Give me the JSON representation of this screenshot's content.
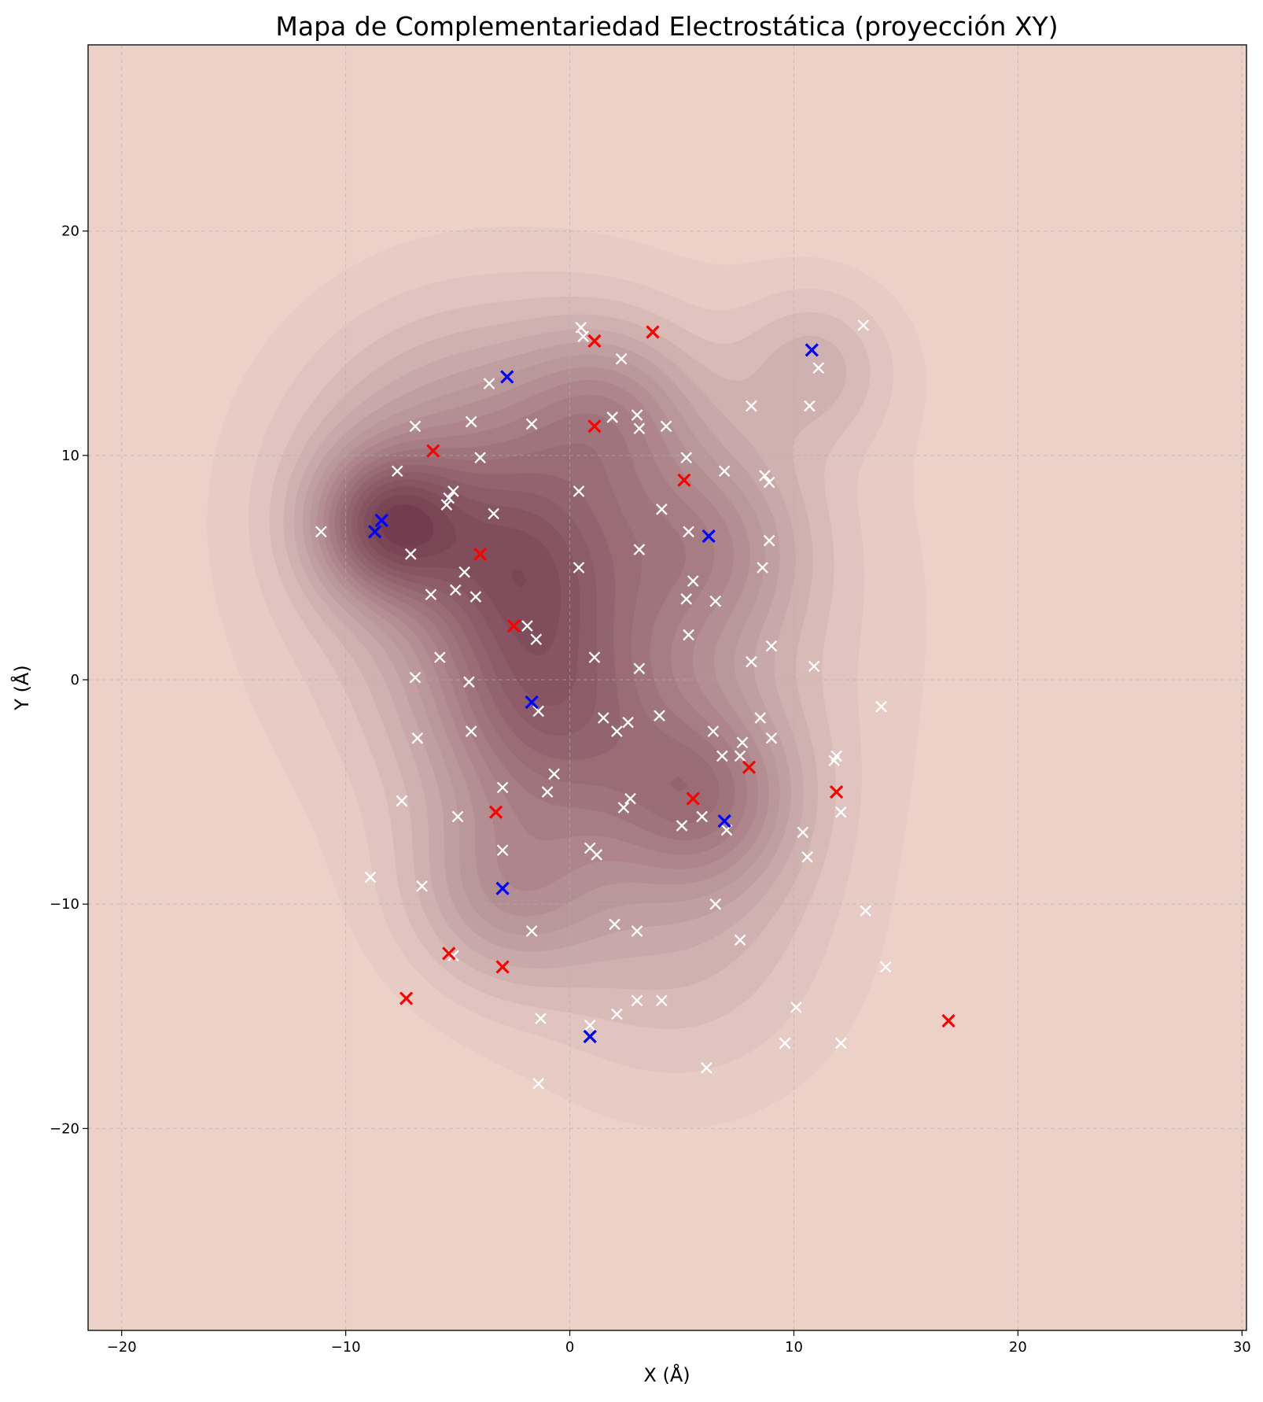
{
  "chart_data": {
    "type": "scatter",
    "title": "Mapa de Complementariedad Electrostática (proyección XY)",
    "xlabel": "X (Å)",
    "ylabel": "Y (Å)",
    "xlim": [
      -21.5,
      30.2
    ],
    "ylim": [
      -29,
      28.3
    ],
    "xticks": [
      -20,
      -10,
      0,
      10,
      20,
      30
    ],
    "yticks": [
      -20,
      -10,
      0,
      10,
      20
    ],
    "xtick_labels": [
      "−20",
      "−10",
      "0",
      "10",
      "20",
      "30"
    ],
    "ytick_labels": [
      "−20",
      "−10",
      "0",
      "10",
      "20"
    ],
    "grid": true,
    "background": {
      "type": "filled-contour density",
      "colormap": "Reds",
      "centers": [
        {
          "x": -8.2,
          "y": 6.9,
          "weight": 1.0,
          "spread": 2.2
        },
        {
          "x": -4.5,
          "y": 8.5,
          "weight": 0.7,
          "spread": 5.0
        },
        {
          "x": -1.5,
          "y": -1.0,
          "weight": 0.65,
          "spread": 3.5
        },
        {
          "x": -2.2,
          "y": 5.0,
          "weight": 0.55,
          "spread": 3.0
        },
        {
          "x": 1.8,
          "y": 12.0,
          "weight": 0.5,
          "spread": 2.8
        },
        {
          "x": 6.0,
          "y": 6.0,
          "weight": 0.55,
          "spread": 3.2
        },
        {
          "x": 6.2,
          "y": -5.2,
          "weight": 0.6,
          "spread": 2.8
        },
        {
          "x": -3.0,
          "y": -9.5,
          "weight": 0.5,
          "spread": 3.0
        },
        {
          "x": 11.0,
          "y": 14.0,
          "weight": 0.35,
          "spread": 2.5
        },
        {
          "x": 2.0,
          "y": -3.0,
          "weight": 0.4,
          "spread": 5.0
        },
        {
          "x": 1.0,
          "y": 3.0,
          "weight": 0.35,
          "spread": 9.0
        },
        {
          "x": 5.0,
          "y": -12.0,
          "weight": 0.3,
          "spread": 5.0
        }
      ]
    },
    "series": [
      {
        "color": "#ffffff",
        "marker": "x",
        "points": [
          [
            -11.1,
            6.6
          ],
          [
            -7.7,
            9.3
          ],
          [
            -6.9,
            11.3
          ],
          [
            -7.1,
            5.6
          ],
          [
            -6.2,
            3.8
          ],
          [
            -6.9,
            0.1
          ],
          [
            -5.8,
            1.0
          ],
          [
            -4.4,
            11.5
          ],
          [
            -4.0,
            9.9
          ],
          [
            -3.6,
            13.2
          ],
          [
            -3.4,
            7.4
          ],
          [
            -5.5,
            7.8
          ],
          [
            -5.4,
            8.1
          ],
          [
            -5.2,
            8.4
          ],
          [
            -4.7,
            4.8
          ],
          [
            -5.1,
            4.0
          ],
          [
            -4.2,
            3.7
          ],
          [
            -4.5,
            -0.1
          ],
          [
            -4.4,
            -2.3
          ],
          [
            -6.8,
            -2.6
          ],
          [
            -7.5,
            -5.4
          ],
          [
            -5.0,
            -6.1
          ],
          [
            -3.0,
            -4.8
          ],
          [
            -3.0,
            -7.6
          ],
          [
            -8.9,
            -8.8
          ],
          [
            -6.6,
            -9.2
          ],
          [
            -5.2,
            -12.3
          ],
          [
            -1.7,
            -11.2
          ],
          [
            -1.3,
            -15.1
          ],
          [
            -1.4,
            -18.0
          ],
          [
            -1.7,
            11.4
          ],
          [
            -1.9,
            2.4
          ],
          [
            -1.5,
            1.8
          ],
          [
            -1.4,
            -1.4
          ],
          [
            -0.7,
            -4.2
          ],
          [
            -1.0,
            -5.0
          ],
          [
            0.5,
            15.7
          ],
          [
            0.6,
            15.3
          ],
          [
            0.4,
            8.4
          ],
          [
            0.4,
            5.0
          ],
          [
            1.1,
            1.0
          ],
          [
            2.3,
            14.3
          ],
          [
            1.9,
            11.7
          ],
          [
            3.0,
            11.8
          ],
          [
            3.1,
            11.2
          ],
          [
            4.3,
            11.3
          ],
          [
            3.1,
            5.8
          ],
          [
            3.1,
            0.5
          ],
          [
            1.5,
            -1.7
          ],
          [
            2.1,
            -2.3
          ],
          [
            2.6,
            -1.9
          ],
          [
            2.7,
            -5.3
          ],
          [
            2.4,
            -5.7
          ],
          [
            0.9,
            -7.5
          ],
          [
            1.2,
            -7.8
          ],
          [
            2.0,
            -10.9
          ],
          [
            3.0,
            -11.2
          ],
          [
            3.0,
            -14.3
          ],
          [
            2.1,
            -14.9
          ],
          [
            0.9,
            -15.4
          ],
          [
            4.1,
            -14.3
          ],
          [
            4.0,
            -1.6
          ],
          [
            4.1,
            7.6
          ],
          [
            5.2,
            9.9
          ],
          [
            5.3,
            6.6
          ],
          [
            5.5,
            4.4
          ],
          [
            5.2,
            3.6
          ],
          [
            5.3,
            2.0
          ],
          [
            6.5,
            3.5
          ],
          [
            6.9,
            9.3
          ],
          [
            8.1,
            12.2
          ],
          [
            8.7,
            9.1
          ],
          [
            8.9,
            8.8
          ],
          [
            8.9,
            6.2
          ],
          [
            8.6,
            5.0
          ],
          [
            9.0,
            1.5
          ],
          [
            8.1,
            0.8
          ],
          [
            6.4,
            -2.3
          ],
          [
            6.8,
            -3.4
          ],
          [
            7.6,
            -3.4
          ],
          [
            7.7,
            -2.8
          ],
          [
            8.5,
            -1.7
          ],
          [
            9.0,
            -2.6
          ],
          [
            5.0,
            -6.5
          ],
          [
            5.9,
            -6.1
          ],
          [
            7.0,
            -6.7
          ],
          [
            6.5,
            -10.0
          ],
          [
            7.6,
            -11.6
          ],
          [
            6.1,
            -17.3
          ],
          [
            9.6,
            -16.2
          ],
          [
            10.1,
            -14.6
          ],
          [
            10.4,
            -6.8
          ],
          [
            10.6,
            -7.9
          ],
          [
            10.7,
            12.2
          ],
          [
            11.1,
            13.9
          ],
          [
            10.9,
            0.6
          ],
          [
            11.8,
            -3.6
          ],
          [
            11.9,
            -3.4
          ],
          [
            12.1,
            -5.9
          ],
          [
            12.1,
            -16.2
          ],
          [
            13.2,
            -10.3
          ],
          [
            13.1,
            15.8
          ],
          [
            13.9,
            -1.2
          ],
          [
            14.1,
            -12.8
          ]
        ]
      },
      {
        "color": "#ff0000",
        "marker": "x",
        "points": [
          [
            -6.1,
            10.2
          ],
          [
            -4.0,
            5.6
          ],
          [
            -2.5,
            2.4
          ],
          [
            1.1,
            15.1
          ],
          [
            3.7,
            15.5
          ],
          [
            1.1,
            11.3
          ],
          [
            5.1,
            8.9
          ],
          [
            -3.3,
            -5.9
          ],
          [
            -5.4,
            -12.2
          ],
          [
            -3.0,
            -12.8
          ],
          [
            -7.3,
            -14.2
          ],
          [
            5.5,
            -5.3
          ],
          [
            8.0,
            -3.9
          ],
          [
            11.9,
            -5.0
          ],
          [
            16.9,
            -15.2
          ]
        ]
      },
      {
        "color": "#0000ff",
        "marker": "x",
        "points": [
          [
            -2.8,
            13.5
          ],
          [
            -8.4,
            7.1
          ],
          [
            -8.7,
            6.6
          ],
          [
            6.2,
            6.4
          ],
          [
            10.8,
            14.7
          ],
          [
            -1.7,
            -1.0
          ],
          [
            6.9,
            -6.3
          ],
          [
            -3.0,
            -9.3
          ],
          [
            0.9,
            -15.9
          ]
        ]
      }
    ]
  }
}
